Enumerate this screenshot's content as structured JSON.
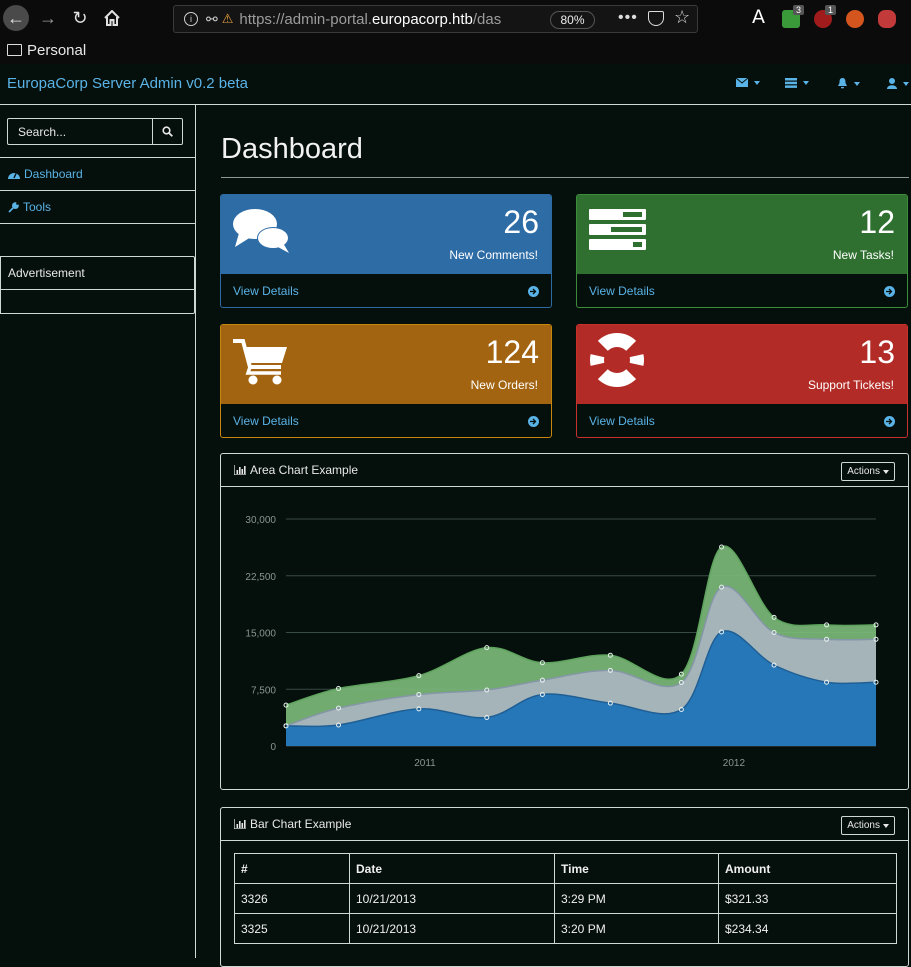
{
  "browser": {
    "url_prefix": "https://admin-portal.",
    "url_domain": "europacorp.htb",
    "url_suffix": "/das",
    "zoom": "80%",
    "ext_badge_1": "3",
    "ext_badge_2": "1",
    "ext_a": "A",
    "bookmark_folder": "Personal"
  },
  "app": {
    "brand": "EuropaCorp Server Admin v0.2 beta"
  },
  "sidebar": {
    "search_placeholder": "Search...",
    "items": [
      {
        "label": "Dashboard",
        "icon": "dashboard-icon"
      },
      {
        "label": "Tools",
        "icon": "wrench-icon"
      }
    ],
    "advertisement": "Advertisement"
  },
  "main": {
    "title": "Dashboard",
    "panels": [
      {
        "count": "26",
        "label": "New Comments!",
        "link": "View Details",
        "icon": "comments-icon",
        "color": "#2e6ca6"
      },
      {
        "count": "12",
        "label": "New Tasks!",
        "link": "View Details",
        "icon": "tasks-icon",
        "color": "#2f7030"
      },
      {
        "count": "124",
        "label": "New Orders!",
        "link": "View Details",
        "icon": "shopping-cart-icon",
        "color": "#a36411"
      },
      {
        "count": "13",
        "label": "Support Tickets!",
        "link": "View Details",
        "icon": "support-icon",
        "color": "#b32b26"
      }
    ],
    "area_chart_title": "Area Chart Example",
    "bar_chart_title": "Bar Chart Example",
    "actions_label": "Actions"
  },
  "chart_data": {
    "type": "area",
    "x": [
      2010.55,
      2010.72,
      2010.98,
      2011.2,
      2011.38,
      2011.6,
      2011.83,
      2011.96,
      2012.13,
      2012.3,
      2012.46
    ],
    "series": [
      {
        "name": "",
        "color": "#2677b8",
        "values": [
          2666,
          2778,
          4912,
          3767,
          6810,
          5670,
          4820,
          15073,
          10687,
          8432,
          8432
        ]
      },
      {
        "name": "",
        "color": "#a8b4bf",
        "values": [
          2666,
          5000,
          6800,
          7400,
          8700,
          10000,
          8400,
          21000,
          15000,
          14100,
          14100
        ]
      },
      {
        "name": "",
        "color": "#7bb87a",
        "values": [
          5400,
          7600,
          9300,
          13000,
          11000,
          12000,
          9500,
          26300,
          17000,
          16000,
          16000
        ]
      }
    ],
    "x_ticks": [
      "2011",
      "2012"
    ],
    "y_ticks": [
      "0",
      "7,500",
      "15,000",
      "22,500",
      "30,000"
    ],
    "ylim": [
      0,
      30000
    ],
    "grid": true
  },
  "orders_table": {
    "headers": [
      "#",
      "Date",
      "Time",
      "Amount"
    ],
    "rows": [
      [
        "3326",
        "10/21/2013",
        "3:29 PM",
        "$321.33"
      ],
      [
        "3325",
        "10/21/2013",
        "3:20 PM",
        "$234.34"
      ]
    ]
  }
}
